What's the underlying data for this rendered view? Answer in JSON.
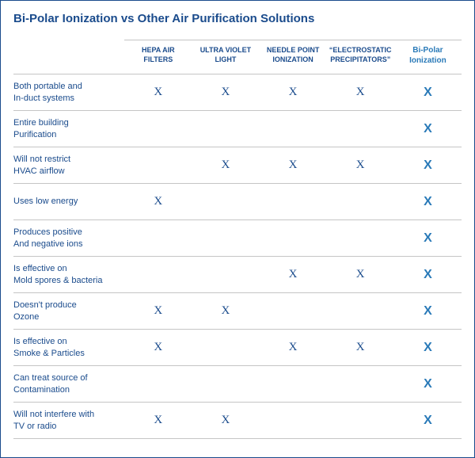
{
  "title": "Bi-Polar Ionization vs Other Air Purification Solutions",
  "table": {
    "type": "table",
    "mark_glyph": "X",
    "colors": {
      "border": "#1a4b8c",
      "text_primary": "#1a4b8c",
      "text_highlight": "#2a7ab8",
      "row_divider": "#c5c5c5",
      "background": "#ffffff"
    },
    "columns": [
      {
        "label_line1": "HEPA AIR",
        "label_line2": "FILTERS",
        "highlight": false
      },
      {
        "label_line1": "ULTRA VIOLET",
        "label_line2": "LIGHT",
        "highlight": false
      },
      {
        "label_line1": "NEEDLE POINT",
        "label_line2": "IONIZATION",
        "highlight": false
      },
      {
        "label_line1": "“ELECTROSTATIC",
        "label_line2": "PRECIPITATORS”",
        "highlight": false
      },
      {
        "label_line1": "Bi-Polar",
        "label_line2": "Ionization",
        "highlight": true
      }
    ],
    "rows": [
      {
        "label_line1": "Both portable and",
        "label_line2": "In-duct systems",
        "marks": [
          true,
          true,
          true,
          true,
          true
        ]
      },
      {
        "label_line1": "Entire building",
        "label_line2": "Purification",
        "marks": [
          false,
          false,
          false,
          false,
          true
        ]
      },
      {
        "label_line1": "Will not restrict",
        "label_line2": "HVAC airflow",
        "marks": [
          false,
          true,
          true,
          true,
          true
        ]
      },
      {
        "label_line1": "Uses low energy",
        "label_line2": "",
        "marks": [
          true,
          false,
          false,
          false,
          true
        ]
      },
      {
        "label_line1": "Produces positive",
        "label_line2": "And negative ions",
        "marks": [
          false,
          false,
          false,
          false,
          true
        ]
      },
      {
        "label_line1": "Is effective on",
        "label_line2": "Mold spores & bacteria",
        "marks": [
          false,
          false,
          true,
          true,
          true
        ]
      },
      {
        "label_line1": "Doesn't produce",
        "label_line2": "Ozone",
        "marks": [
          true,
          true,
          false,
          false,
          true
        ]
      },
      {
        "label_line1": "Is effective on",
        "label_line2": "Smoke & Particles",
        "marks": [
          true,
          false,
          true,
          true,
          true
        ]
      },
      {
        "label_line1": "Can treat source of",
        "label_line2": "Contamination",
        "marks": [
          false,
          false,
          false,
          false,
          true
        ]
      },
      {
        "label_line1": "Will not interfere with",
        "label_line2": "TV or radio",
        "marks": [
          true,
          true,
          false,
          false,
          true
        ]
      }
    ]
  }
}
